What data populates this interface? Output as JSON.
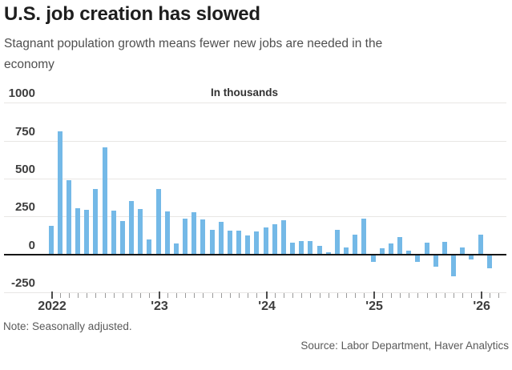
{
  "header": {
    "title": "U.S. job creation has slowed",
    "subtitle": "Stagnant population growth means fewer new jobs are needed in the economy"
  },
  "chart_data": {
    "type": "bar",
    "title": "U.S. job creation has slowed",
    "unit_label": "In thousands",
    "ylabel": "In thousands",
    "xlabel": "",
    "grid": true,
    "legend": false,
    "bar_color": "#74b9e7",
    "ylim": [
      -250,
      1000
    ],
    "yticks": [
      1000,
      750,
      500,
      250,
      0,
      -250
    ],
    "year_labels": [
      {
        "label": "2022",
        "month_index": 0
      },
      {
        "label": "'23",
        "month_index": 12
      },
      {
        "label": "'24",
        "month_index": 24
      },
      {
        "label": "'25",
        "month_index": 36
      },
      {
        "label": "'26",
        "month_index": 48
      }
    ],
    "categories": [
      "Jan 2022",
      "Feb 2022",
      "Mar 2022",
      "Apr 2022",
      "May 2022",
      "Jun 2022",
      "Jul 2022",
      "Aug 2022",
      "Sep 2022",
      "Oct 2022",
      "Nov 2022",
      "Dec 2022",
      "Jan 2023",
      "Feb 2023",
      "Mar 2023",
      "Apr 2023",
      "May 2023",
      "Jun 2023",
      "Jul 2023",
      "Aug 2023",
      "Sep 2023",
      "Oct 2023",
      "Nov 2023",
      "Dec 2023",
      "Jan 2024",
      "Feb 2024",
      "Mar 2024",
      "Apr 2024",
      "May 2024",
      "Jun 2024",
      "Jul 2024",
      "Aug 2024",
      "Sep 2024",
      "Oct 2024",
      "Nov 2024",
      "Dec 2024",
      "Jan 2025",
      "Feb 2025",
      "Mar 2025",
      "Apr 2025",
      "May 2025",
      "Jun 2025",
      "Jul 2025",
      "Aug 2025",
      "Sep 2025",
      "Oct 2025",
      "Nov 2025",
      "Dec 2025",
      "Jan 2026",
      "Feb 2026"
    ],
    "values": [
      190,
      810,
      490,
      305,
      295,
      430,
      705,
      290,
      220,
      350,
      300,
      100,
      430,
      285,
      70,
      235,
      275,
      230,
      160,
      215,
      155,
      155,
      125,
      150,
      175,
      200,
      225,
      75,
      85,
      85,
      55,
      15,
      160,
      45,
      130,
      235,
      -40,
      40,
      70,
      115,
      25,
      -40,
      75,
      -75,
      80,
      -135,
      45,
      -25,
      130,
      -85
    ]
  },
  "footer": {
    "note": "Note: Seasonally adjusted.",
    "source": "Source: Labor Department, Haver Analytics"
  }
}
